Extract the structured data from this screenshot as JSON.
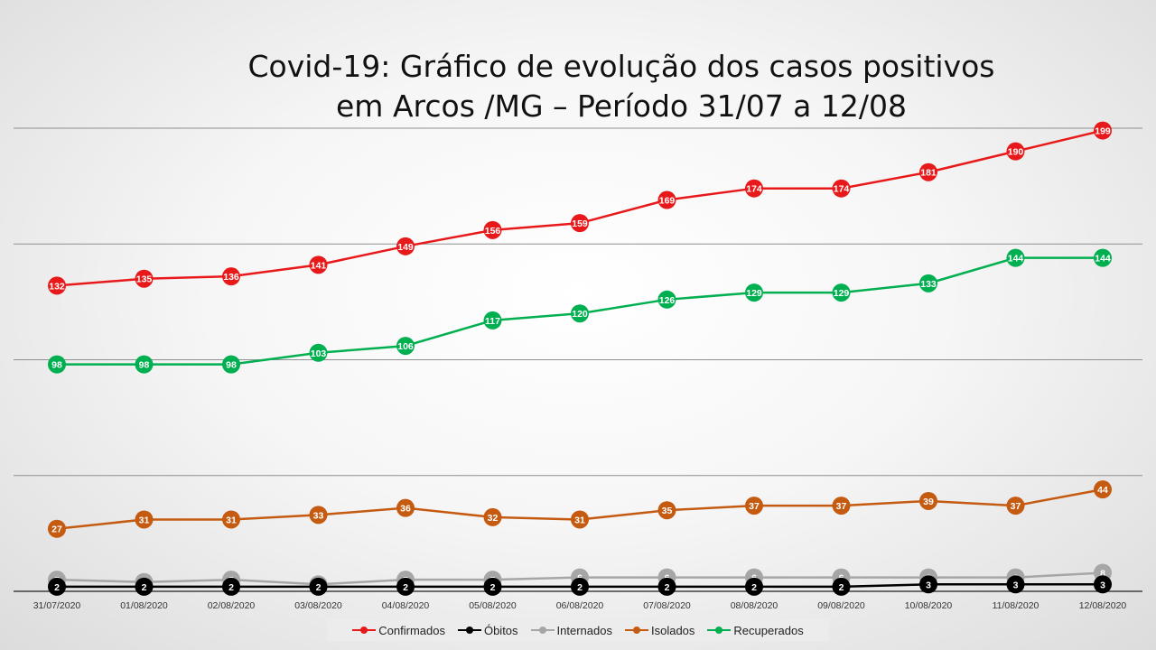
{
  "chart_data": {
    "type": "line",
    "title_lines": [
      "Covid-19: Gráfico de evolução dos casos positivos",
      "em Arcos /MG – Período 31/07 a 12/08"
    ],
    "categories": [
      "31/07/2020",
      "01/08/2020",
      "02/08/2020",
      "03/08/2020",
      "04/08/2020",
      "05/08/2020",
      "06/08/2020",
      "07/08/2020",
      "08/08/2020",
      "09/08/2020",
      "10/08/2020",
      "11/08/2020",
      "12/08/2020"
    ],
    "ylim": [
      0,
      200
    ],
    "grid": true,
    "legend_position": "bottom",
    "series": [
      {
        "name": "Confirmados",
        "color": "#e8191a",
        "values": [
          132,
          135,
          136,
          141,
          149,
          156,
          159,
          169,
          174,
          174,
          181,
          190,
          199
        ]
      },
      {
        "name": "Óbitos",
        "color": "#000000",
        "values": [
          2,
          2,
          2,
          2,
          2,
          2,
          2,
          2,
          2,
          2,
          3,
          3,
          3
        ]
      },
      {
        "name": "Internados",
        "color": "#a6a6a6",
        "values": [
          5,
          4,
          5,
          3,
          5,
          5,
          6,
          6,
          6,
          6,
          6,
          6,
          8
        ]
      },
      {
        "name": "Isolados",
        "color": "#c55a11",
        "values": [
          27,
          31,
          31,
          33,
          36,
          32,
          31,
          35,
          37,
          37,
          39,
          37,
          44
        ]
      },
      {
        "name": "Recuperados",
        "color": "#00b050",
        "values": [
          98,
          98,
          98,
          103,
          106,
          117,
          120,
          126,
          129,
          129,
          133,
          144,
          144
        ]
      }
    ]
  }
}
